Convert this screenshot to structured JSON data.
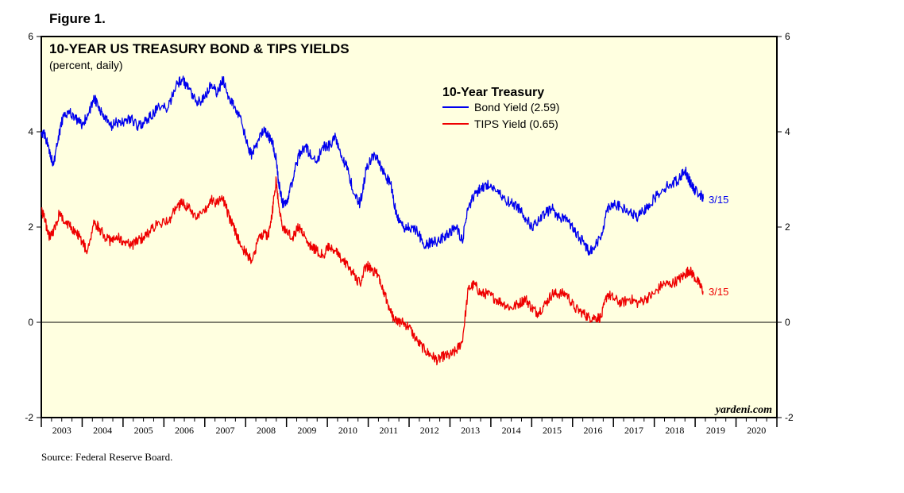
{
  "figure_label": "Figure 1.",
  "source": "Source: Federal Reserve Board.",
  "watermark": "yardeni.com",
  "colors": {
    "background": "#ffffe0",
    "bond": "#0000ee",
    "tips": "#ee0000",
    "axis": "#000000"
  },
  "chart_data": {
    "type": "line",
    "title": "10-YEAR US TREASURY BOND & TIPS YIELDS",
    "subtitle": "(percent, daily)",
    "legend_title": "10-Year Treasury",
    "legend_placement": "top-center",
    "ylim": [
      -2,
      6
    ],
    "yticks": [
      -2,
      0,
      2,
      4,
      6
    ],
    "xlim": [
      2003,
      2021
    ],
    "xtick_labels": [
      "2003",
      "2004",
      "2005",
      "2006",
      "2007",
      "2008",
      "2009",
      "2010",
      "2011",
      "2012",
      "2013",
      "2014",
      "2015",
      "2016",
      "2017",
      "2018",
      "2019",
      "2020"
    ],
    "zero_line": true,
    "grid": false,
    "series": [
      {
        "name": "Bond Yield (2.59)",
        "end_label": "3/15",
        "color": "#0000ee",
        "x": [
          2003.0,
          2003.1,
          2003.2,
          2003.3,
          2003.45,
          2003.55,
          2003.7,
          2003.85,
          2004.0,
          2004.1,
          2004.3,
          2004.4,
          2004.55,
          2004.7,
          2004.85,
          2005.0,
          2005.2,
          2005.35,
          2005.5,
          2005.65,
          2005.85,
          2006.1,
          2006.3,
          2006.45,
          2006.6,
          2006.8,
          2007.0,
          2007.15,
          2007.3,
          2007.45,
          2007.6,
          2007.75,
          2007.9,
          2008.05,
          2008.15,
          2008.3,
          2008.45,
          2008.55,
          2008.65,
          2008.75,
          2008.8,
          2008.9,
          2009.0,
          2009.15,
          2009.3,
          2009.45,
          2009.6,
          2009.75,
          2009.9,
          2010.05,
          2010.2,
          2010.35,
          2010.5,
          2010.65,
          2010.8,
          2010.95,
          2011.1,
          2011.25,
          2011.4,
          2011.55,
          2011.7,
          2011.85,
          2012.0,
          2012.2,
          2012.4,
          2012.55,
          2012.7,
          2012.85,
          2013.0,
          2013.15,
          2013.3,
          2013.45,
          2013.6,
          2013.75,
          2013.9,
          2014.1,
          2014.3,
          2014.5,
          2014.7,
          2014.85,
          2015.0,
          2015.15,
          2015.35,
          2015.5,
          2015.65,
          2015.85,
          2016.05,
          2016.25,
          2016.4,
          2016.55,
          2016.7,
          2016.85,
          2017.0,
          2017.2,
          2017.4,
          2017.6,
          2017.8,
          2018.0,
          2018.2,
          2018.4,
          2018.6,
          2018.75,
          2018.85,
          2018.95,
          2019.1,
          2019.2
        ],
        "y": [
          4.0,
          3.9,
          3.6,
          3.3,
          4.0,
          4.4,
          4.4,
          4.25,
          4.15,
          4.3,
          4.7,
          4.5,
          4.3,
          4.1,
          4.2,
          4.2,
          4.3,
          4.1,
          4.2,
          4.3,
          4.5,
          4.5,
          5.0,
          5.1,
          4.9,
          4.6,
          4.7,
          5.0,
          4.8,
          5.1,
          4.7,
          4.5,
          4.2,
          3.7,
          3.5,
          3.8,
          4.1,
          3.9,
          3.8,
          3.4,
          3.0,
          2.5,
          2.5,
          3.0,
          3.5,
          3.7,
          3.5,
          3.4,
          3.7,
          3.7,
          3.9,
          3.5,
          3.2,
          2.7,
          2.5,
          3.2,
          3.5,
          3.4,
          3.1,
          2.9,
          2.2,
          2.0,
          2.0,
          1.9,
          1.6,
          1.7,
          1.7,
          1.8,
          1.9,
          2.0,
          1.7,
          2.4,
          2.7,
          2.8,
          2.9,
          2.8,
          2.6,
          2.5,
          2.4,
          2.2,
          2.0,
          2.1,
          2.3,
          2.4,
          2.2,
          2.2,
          1.9,
          1.7,
          1.5,
          1.6,
          1.8,
          2.4,
          2.5,
          2.4,
          2.3,
          2.2,
          2.4,
          2.6,
          2.8,
          2.9,
          3.0,
          3.2,
          3.0,
          2.8,
          2.7,
          2.59
        ]
      },
      {
        "name": "TIPS Yield (0.65)",
        "end_label": "3/15",
        "color": "#ee0000",
        "x": [
          2003.0,
          2003.1,
          2003.2,
          2003.3,
          2003.45,
          2003.55,
          2003.7,
          2003.85,
          2004.0,
          2004.1,
          2004.3,
          2004.4,
          2004.55,
          2004.7,
          2004.85,
          2005.0,
          2005.2,
          2005.35,
          2005.5,
          2005.65,
          2005.85,
          2006.1,
          2006.3,
          2006.45,
          2006.6,
          2006.8,
          2007.0,
          2007.15,
          2007.3,
          2007.45,
          2007.6,
          2007.75,
          2007.9,
          2008.05,
          2008.15,
          2008.3,
          2008.45,
          2008.55,
          2008.65,
          2008.75,
          2008.8,
          2008.9,
          2009.0,
          2009.15,
          2009.3,
          2009.45,
          2009.6,
          2009.75,
          2009.9,
          2010.05,
          2010.2,
          2010.35,
          2010.5,
          2010.65,
          2010.8,
          2010.95,
          2011.1,
          2011.25,
          2011.4,
          2011.55,
          2011.7,
          2011.85,
          2012.0,
          2012.2,
          2012.4,
          2012.55,
          2012.7,
          2012.85,
          2013.0,
          2013.15,
          2013.3,
          2013.45,
          2013.6,
          2013.75,
          2013.9,
          2014.1,
          2014.3,
          2014.5,
          2014.7,
          2014.85,
          2015.0,
          2015.15,
          2015.35,
          2015.5,
          2015.65,
          2015.85,
          2016.05,
          2016.25,
          2016.4,
          2016.55,
          2016.7,
          2016.85,
          2017.0,
          2017.2,
          2017.4,
          2017.6,
          2017.8,
          2018.0,
          2018.2,
          2018.4,
          2018.6,
          2018.75,
          2018.85,
          2018.95,
          2019.1,
          2019.2
        ],
        "y": [
          2.4,
          2.1,
          1.8,
          1.9,
          2.3,
          2.1,
          2.0,
          1.9,
          1.7,
          1.5,
          2.1,
          2.0,
          1.8,
          1.7,
          1.8,
          1.7,
          1.6,
          1.7,
          1.8,
          1.9,
          2.1,
          2.1,
          2.4,
          2.5,
          2.4,
          2.2,
          2.3,
          2.6,
          2.5,
          2.6,
          2.2,
          1.9,
          1.6,
          1.4,
          1.3,
          1.7,
          1.9,
          1.8,
          2.3,
          3.0,
          2.5,
          2.0,
          1.9,
          1.8,
          2.0,
          1.8,
          1.6,
          1.5,
          1.4,
          1.6,
          1.5,
          1.3,
          1.2,
          1.0,
          0.8,
          1.2,
          1.1,
          1.0,
          0.6,
          0.2,
          0.0,
          0.0,
          -0.1,
          -0.4,
          -0.6,
          -0.7,
          -0.8,
          -0.7,
          -0.7,
          -0.6,
          -0.4,
          0.7,
          0.8,
          0.6,
          0.6,
          0.5,
          0.4,
          0.3,
          0.4,
          0.5,
          0.3,
          0.2,
          0.4,
          0.6,
          0.6,
          0.6,
          0.3,
          0.2,
          0.1,
          0.1,
          0.1,
          0.6,
          0.5,
          0.4,
          0.5,
          0.4,
          0.5,
          0.6,
          0.8,
          0.8,
          0.9,
          1.0,
          1.1,
          1.0,
          0.8,
          0.65
        ]
      }
    ]
  }
}
